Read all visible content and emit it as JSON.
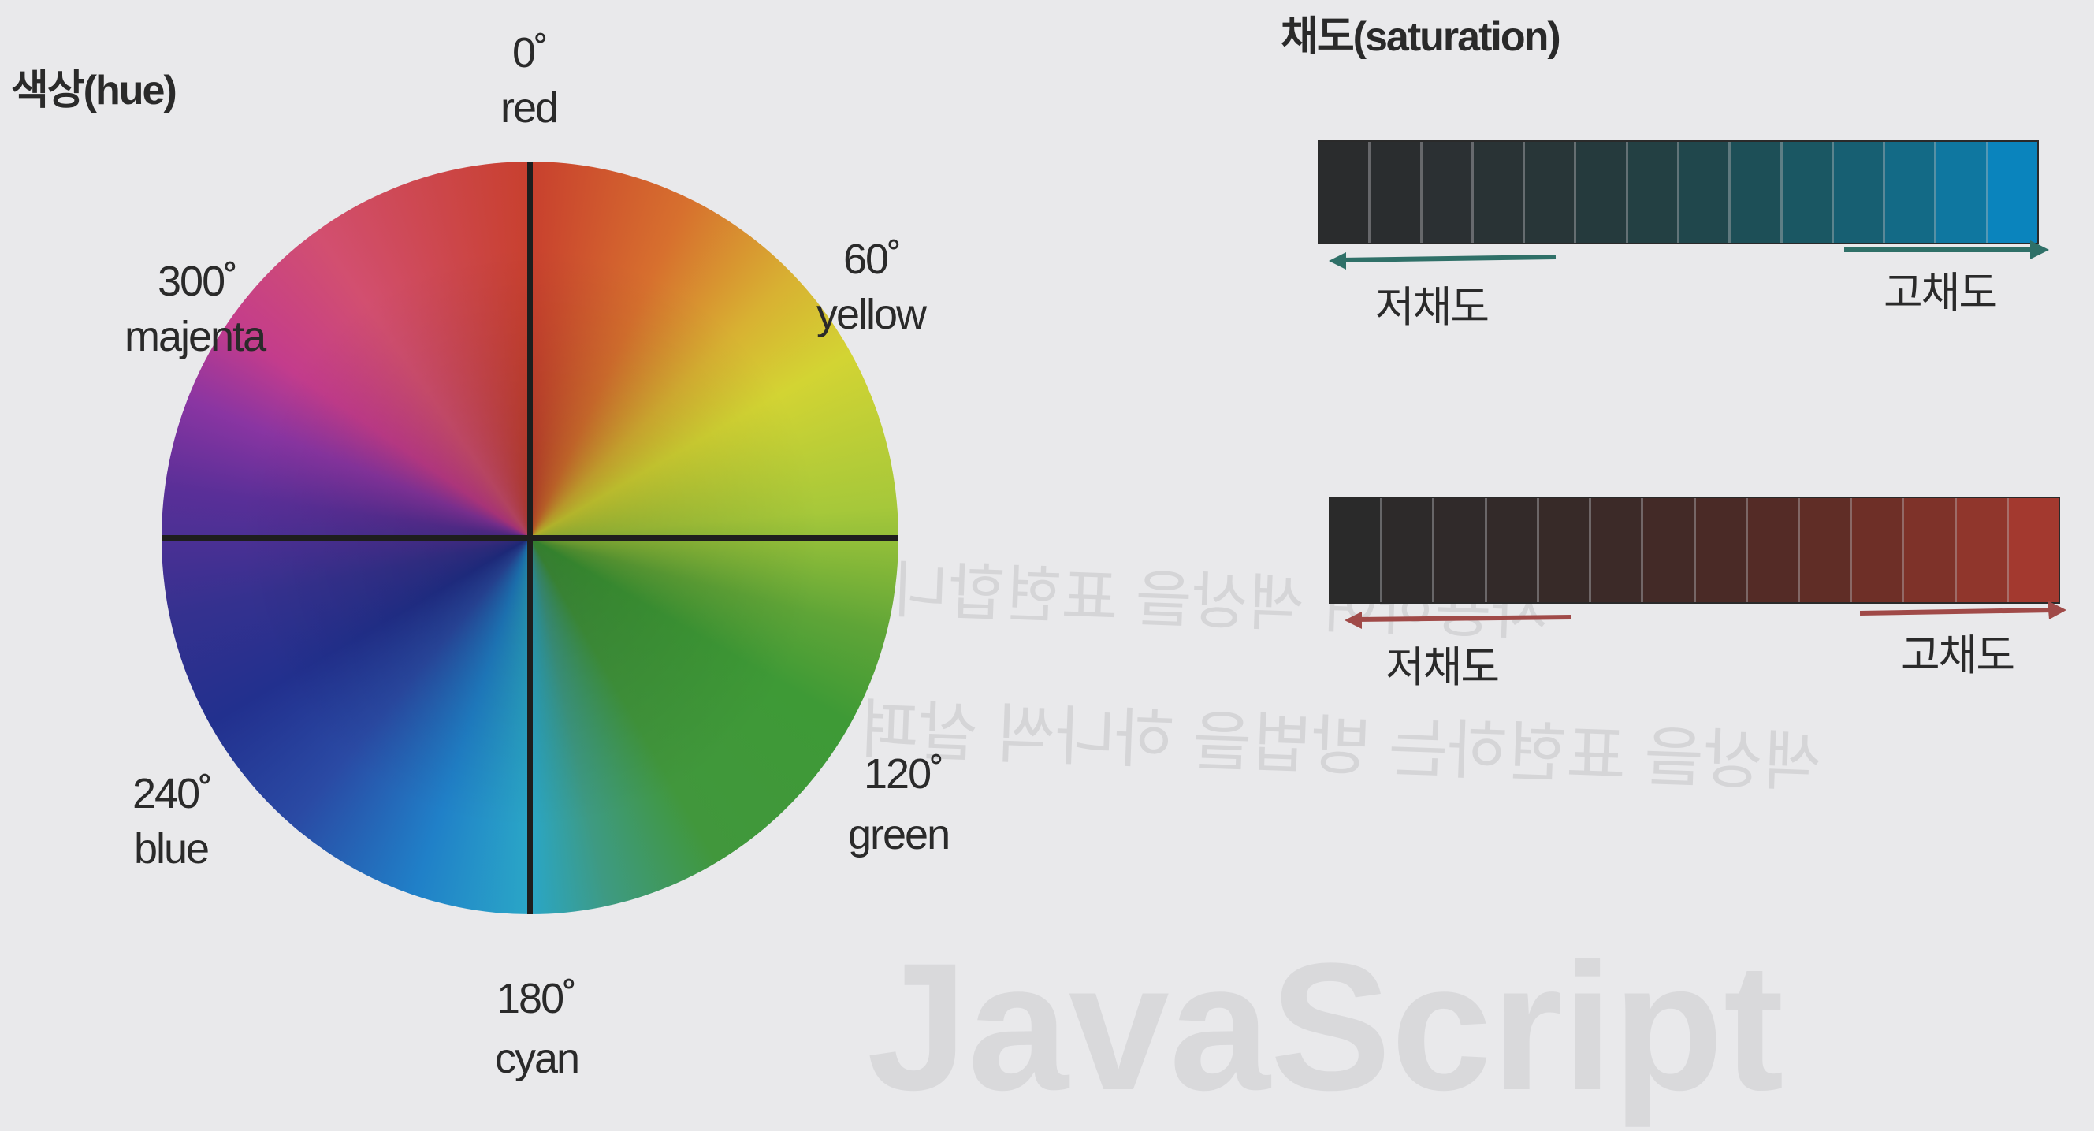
{
  "hue": {
    "title": "색상(hue)",
    "labels": [
      {
        "degree": "0˚",
        "name": "red"
      },
      {
        "degree": "60˚",
        "name": "yellow"
      },
      {
        "degree": "120˚",
        "name": "green"
      },
      {
        "degree": "180˚",
        "name": "cyan"
      },
      {
        "degree": "240˚",
        "name": "blue"
      },
      {
        "degree": "300˚",
        "name": "majenta"
      }
    ]
  },
  "saturation": {
    "title": "채도(saturation)",
    "blue_bar": {
      "low_label": "저채도",
      "high_label": "고채도",
      "cells": [
        "#2a2c2d",
        "#2a2d2f",
        "#2b3033",
        "#293335",
        "#283638",
        "#253a3d",
        "#234043",
        "#20474c",
        "#1d4f57",
        "#1a5763",
        "#175f72",
        "#136a86",
        "#0f77a0",
        "#0a84bd"
      ],
      "arrow_color": "#2f7068"
    },
    "red_bar": {
      "low_label": "저채도",
      "high_label": "고채도",
      "cells": [
        "#2a2a2a",
        "#2d2a2a",
        "#302a2a",
        "#332a29",
        "#372a28",
        "#3c2a28",
        "#432a27",
        "#4a2a26",
        "#542b26",
        "#602d26",
        "#6e2f27",
        "#7e3229",
        "#90362c",
        "#a3392f"
      ],
      "arrow_color": "#a04a48"
    }
  },
  "watermark": {
    "lines": [
      "사용하여 색상을 표현합니다",
      "색상을 표현하는 방법을 하나씩 살펴"
    ],
    "logo_text": "JavaScript"
  }
}
